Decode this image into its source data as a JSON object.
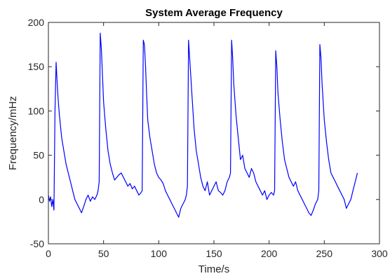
{
  "chart_data": {
    "type": "line",
    "title": "System Average Frequency",
    "xlabel": "Time/s",
    "ylabel": "Frequency/mHz",
    "xlim": [
      0,
      300
    ],
    "ylim": [
      -50,
      200
    ],
    "xticks": [
      0,
      50,
      100,
      150,
      200,
      250,
      300
    ],
    "yticks": [
      -50,
      0,
      50,
      100,
      150,
      200
    ],
    "grid": false,
    "series_color": "#0000ff",
    "series": [
      {
        "x": [
          0,
          1,
          2,
          3,
          4,
          5,
          6,
          7,
          8,
          9,
          10,
          12,
          14,
          16,
          18,
          20,
          22,
          24,
          26,
          28,
          30,
          32,
          34,
          36,
          38,
          40,
          42,
          44,
          45,
          46,
          47,
          48,
          49,
          50,
          52,
          54,
          56,
          58,
          60,
          62,
          64,
          66,
          68,
          70,
          72,
          74,
          76,
          78,
          80,
          82,
          84,
          85,
          86,
          87,
          88,
          89,
          90,
          92,
          94,
          96,
          98,
          100,
          102,
          104,
          106,
          108,
          110,
          112,
          114,
          116,
          118,
          120,
          122,
          124,
          125,
          126,
          127,
          128,
          130,
          132,
          134,
          136,
          138,
          140,
          142,
          144,
          146,
          148,
          150,
          152,
          154,
          156,
          158,
          160,
          162,
          164,
          165,
          166,
          167,
          168,
          170,
          172,
          174,
          176,
          178,
          180,
          182,
          184,
          186,
          188,
          190,
          192,
          194,
          196,
          198,
          200,
          202,
          204,
          205,
          206,
          207,
          208,
          210,
          212,
          214,
          216,
          218,
          220,
          222,
          224,
          226,
          228,
          230,
          232,
          234,
          236,
          238,
          240,
          242,
          244,
          245,
          246,
          247,
          248,
          250,
          252,
          254,
          256,
          258,
          260,
          262,
          264,
          266,
          268,
          270,
          272,
          274,
          276,
          278,
          280
        ],
        "y": [
          5,
          -2,
          3,
          -8,
          0,
          -12,
          100,
          155,
          130,
          110,
          95,
          70,
          55,
          40,
          30,
          20,
          10,
          0,
          -5,
          -10,
          -15,
          -8,
          0,
          5,
          -2,
          3,
          0,
          5,
          10,
          20,
          188,
          170,
          140,
          110,
          80,
          55,
          40,
          30,
          22,
          25,
          28,
          30,
          25,
          20,
          15,
          18,
          12,
          15,
          10,
          5,
          8,
          10,
          180,
          175,
          150,
          120,
          90,
          70,
          55,
          40,
          30,
          25,
          22,
          18,
          10,
          5,
          0,
          -5,
          -10,
          -15,
          -20,
          -10,
          -5,
          0,
          5,
          15,
          180,
          160,
          120,
          80,
          55,
          40,
          25,
          15,
          10,
          20,
          5,
          10,
          15,
          20,
          10,
          8,
          5,
          10,
          20,
          25,
          30,
          180,
          160,
          130,
          95,
          70,
          45,
          50,
          35,
          30,
          25,
          35,
          30,
          20,
          15,
          10,
          5,
          10,
          0,
          5,
          8,
          5,
          10,
          168,
          150,
          120,
          90,
          65,
          45,
          35,
          25,
          20,
          15,
          20,
          10,
          5,
          0,
          -5,
          -10,
          -15,
          -18,
          -12,
          -5,
          0,
          10,
          175,
          160,
          130,
          90,
          65,
          45,
          30,
          25,
          20,
          15,
          10,
          5,
          0,
          -10,
          -5,
          0,
          10,
          20,
          30
        ]
      }
    ]
  }
}
